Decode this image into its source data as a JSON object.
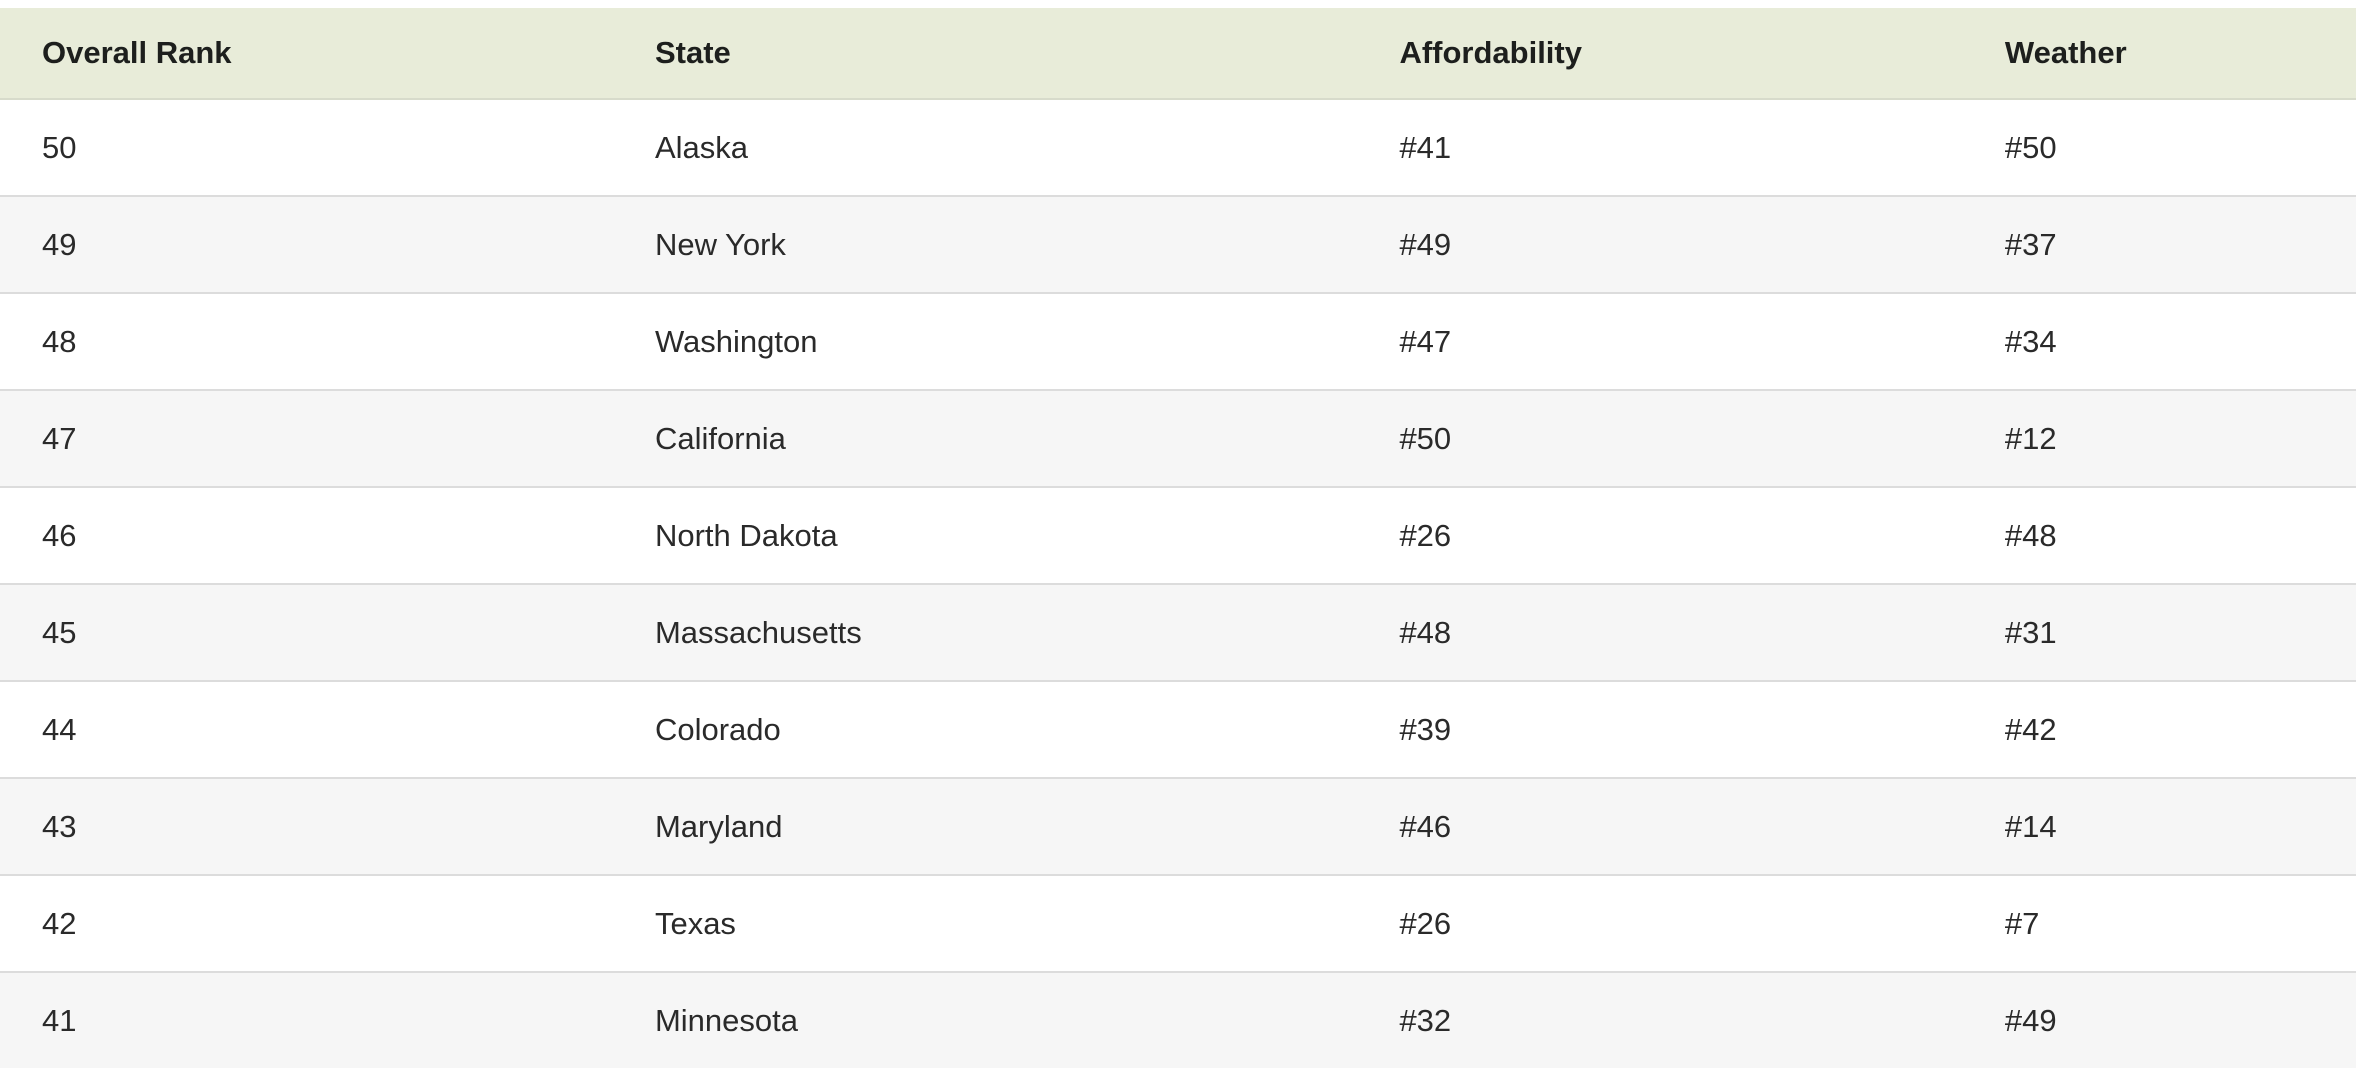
{
  "table": {
    "columns": [
      {
        "key": "rank",
        "label": "Overall Rank"
      },
      {
        "key": "state",
        "label": "State"
      },
      {
        "key": "affordability",
        "label": "Affordability"
      },
      {
        "key": "weather",
        "label": "Weather"
      }
    ],
    "rows": [
      {
        "rank": "50",
        "state": "Alaska",
        "affordability": "#41",
        "weather": "#50"
      },
      {
        "rank": "49",
        "state": "New York",
        "affordability": "#49",
        "weather": "#37"
      },
      {
        "rank": "48",
        "state": "Washington",
        "affordability": "#47",
        "weather": "#34"
      },
      {
        "rank": "47",
        "state": "California",
        "affordability": "#50",
        "weather": "#12"
      },
      {
        "rank": "46",
        "state": "North Dakota",
        "affordability": "#26",
        "weather": "#48"
      },
      {
        "rank": "45",
        "state": "Massachusetts",
        "affordability": "#48",
        "weather": "#31"
      },
      {
        "rank": "44",
        "state": "Colorado",
        "affordability": "#39",
        "weather": "#42"
      },
      {
        "rank": "43",
        "state": "Maryland",
        "affordability": "#46",
        "weather": "#14"
      },
      {
        "rank": "42",
        "state": "Texas",
        "affordability": "#26",
        "weather": "#7"
      },
      {
        "rank": "41",
        "state": "Minnesota",
        "affordability": "#32",
        "weather": "#49"
      }
    ]
  },
  "colors": {
    "header_bg": "#e8ecd9",
    "header_text": "#1d1f1d",
    "row_bg": "#ffffff",
    "row_alt_bg": "#f6f6f6",
    "row_border": "#dcdcdc",
    "body_text": "#2a2a2a"
  },
  "chart_data": {
    "type": "table",
    "title": "",
    "columns": [
      "Overall Rank",
      "State",
      "Affordability",
      "Weather"
    ],
    "rows": [
      [
        50,
        "Alaska",
        41,
        50
      ],
      [
        49,
        "New York",
        49,
        37
      ],
      [
        48,
        "Washington",
        47,
        34
      ],
      [
        47,
        "California",
        50,
        12
      ],
      [
        46,
        "North Dakota",
        26,
        48
      ],
      [
        45,
        "Massachusetts",
        48,
        31
      ],
      [
        44,
        "Colorado",
        39,
        42
      ],
      [
        43,
        "Maryland",
        46,
        14
      ],
      [
        42,
        "Texas",
        26,
        7
      ],
      [
        41,
        "Minnesota",
        32,
        49
      ]
    ],
    "layout_hints": {
      "header_background": "#e8ecd9",
      "zebra_striping": true,
      "sort": "Overall Rank descending"
    }
  }
}
